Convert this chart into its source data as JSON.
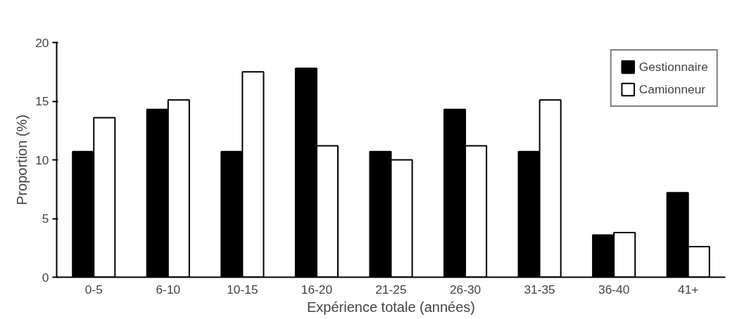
{
  "chart_data": {
    "type": "bar",
    "xlabel": "Expérience totale (années)",
    "ylabel": "Proportion (%)",
    "categories": [
      "0-5",
      "6-10",
      "10-15",
      "16-20",
      "21-25",
      "26-30",
      "31-35",
      "36-40",
      "41+"
    ],
    "series": [
      {
        "name": "Gestionnaire",
        "color": "#000000",
        "values": [
          10.7,
          14.3,
          10.7,
          17.8,
          10.7,
          14.3,
          10.7,
          3.6,
          7.2
        ]
      },
      {
        "name": "Camionneur",
        "color": "#ffffff",
        "values": [
          13.6,
          15.1,
          17.5,
          11.2,
          10.0,
          11.2,
          15.1,
          3.8,
          2.6
        ]
      }
    ],
    "ylim": [
      0,
      20
    ],
    "yticks": [
      0,
      5,
      10,
      15,
      20
    ],
    "grid": false,
    "legend": "top right"
  }
}
